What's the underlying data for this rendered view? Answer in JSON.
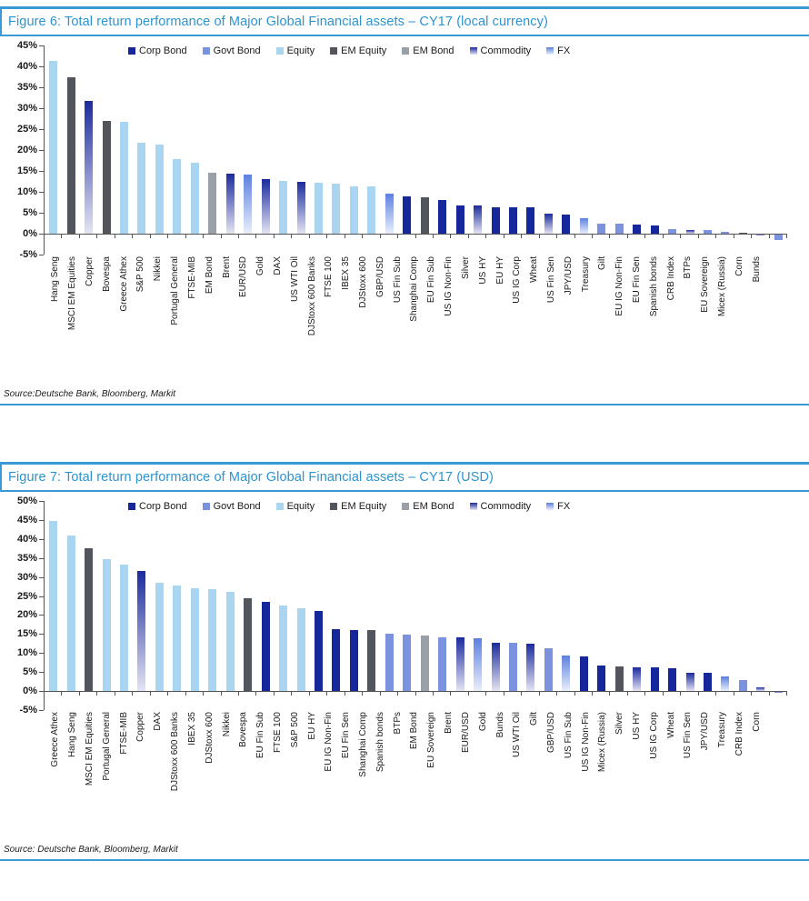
{
  "colors": {
    "accent_rule": "#3a9ad6",
    "title_blue": "#2b94d2",
    "axis": "#555555",
    "corp_bond": "#16279c",
    "govt_bond": "#7b93df",
    "equity": "#a9d5f1",
    "em_equity": "#53555d",
    "em_bond": "#9aa0a8",
    "commodity_top": "#1b2b9e",
    "commodity_bottom": "#e4e4f3",
    "fx_top": "#5b80e0",
    "fx_bottom": "#e9effb"
  },
  "legend_items": [
    {
      "label": "Corp Bond",
      "key": "corp_bond"
    },
    {
      "label": "Govt Bond",
      "key": "govt_bond"
    },
    {
      "label": "Equity",
      "key": "equity"
    },
    {
      "label": "EM Equity",
      "key": "em_equity"
    },
    {
      "label": "EM Bond",
      "key": "em_bond"
    },
    {
      "label": "Commodity",
      "key": "commodity"
    },
    {
      "label": "FX",
      "key": "fx"
    }
  ],
  "chart_data": [
    {
      "type": "bar",
      "title": "Figure 6: Total return performance of Major Global Financial assets – CY17 (local currency)",
      "source": "Source:Deutsche Bank, Bloomberg, Markit",
      "ylabel": "",
      "xlabel": "",
      "ylim": [
        -5,
        45
      ],
      "ytick_step": 5,
      "ytick_suffix": "%",
      "grid": false,
      "legend_position": "top",
      "categories": [
        "Hang Seng",
        "MSCI EM Equities",
        "Copper",
        "Bovespa",
        "Greece Athex",
        "S&P 500",
        "Nikkei",
        "Portugal General",
        "FTSE-MIB",
        "EM Bond",
        "Brent",
        "EUR/USD",
        "Gold",
        "DAX",
        "US WTI Oil",
        "DJStoxx 600 Banks",
        "FTSE 100",
        "IBEX 35",
        "DJStoxx 600",
        "GBP/USD",
        "US Fin Sub",
        "Shanghai Comp",
        "EU Fin Sub",
        "US IG Non-Fin",
        "Silver",
        "US HY",
        "EU HY",
        "US IG Corp",
        "Wheat",
        "US Fin Sen",
        "JPY/USD",
        "Treasury",
        "Gilt",
        "EU IG Non-Fin",
        "EU Fin Sen",
        "Spanish bonds",
        "CRB Index",
        "BTPs",
        "EU Sovereign",
        "Micex (Russia)",
        "Corn",
        "Bunds"
      ],
      "asset_class": [
        "equity",
        "em_equity",
        "commodity",
        "em_equity",
        "equity",
        "equity",
        "equity",
        "equity",
        "equity",
        "em_bond",
        "commodity",
        "fx",
        "commodity",
        "equity",
        "commodity",
        "equity",
        "equity",
        "equity",
        "equity",
        "fx",
        "corp_bond",
        "em_equity",
        "corp_bond",
        "corp_bond",
        "commodity",
        "corp_bond",
        "corp_bond",
        "corp_bond",
        "commodity",
        "corp_bond",
        "fx",
        "govt_bond",
        "govt_bond",
        "corp_bond",
        "corp_bond",
        "govt_bond",
        "commodity",
        "govt_bond",
        "govt_bond",
        "em_equity",
        "commodity",
        "govt_bond"
      ],
      "values": [
        41.3,
        37.5,
        31.7,
        26.9,
        26.7,
        21.8,
        21.2,
        17.8,
        16.9,
        14.5,
        14.3,
        14.1,
        13.1,
        12.7,
        12.5,
        12.1,
        11.9,
        11.3,
        11.2,
        9.5,
        9.0,
        8.8,
        8.0,
        6.7,
        6.7,
        6.4,
        6.3,
        6.2,
        4.8,
        4.6,
        3.8,
        2.5,
        2.3,
        2.2,
        1.9,
        1.0,
        0.9,
        0.9,
        0.5,
        0.2,
        -0.2,
        -1.2
      ]
    },
    {
      "type": "bar",
      "title": "Figure 7: Total return performance of Major Global Financial assets – CY17 (USD)",
      "source": "Source: Deutsche Bank, Bloomberg, Markit",
      "ylabel": "",
      "xlabel": "",
      "ylim": [
        -5,
        50
      ],
      "ytick_step": 5,
      "ytick_suffix": "%",
      "grid": false,
      "legend_position": "top",
      "categories": [
        "Greece Athex",
        "Hang Seng",
        "MSCI EM Equities",
        "Portugal General",
        "FTSE-MIB",
        "Copper",
        "DAX",
        "DJStoxx 600 Banks",
        "IBEX 35",
        "DJStoxx 600",
        "Nikkei",
        "Bovespa",
        "EU Fin Sub",
        "FTSE 100",
        "S&P 500",
        "EU HY",
        "EU IG Non-Fin",
        "EU Fin Sen",
        "Shanghai Comp",
        "Spanish bonds",
        "BTPs",
        "EM Bond",
        "EU Sovereign",
        "Brent",
        "EUR/USD",
        "Gold",
        "Bunds",
        "US WTI Oil",
        "Gilt",
        "GBP/USD",
        "US Fin Sub",
        "US IG Non-Fin",
        "Micex (Russia)",
        "Silver",
        "US HY",
        "US IG Corp",
        "Wheat",
        "US Fin Sen",
        "JPY/USD",
        "Treasury",
        "CRB Index",
        "Corn"
      ],
      "asset_class": [
        "equity",
        "equity",
        "em_equity",
        "equity",
        "equity",
        "commodity",
        "equity",
        "equity",
        "equity",
        "equity",
        "equity",
        "em_equity",
        "corp_bond",
        "equity",
        "equity",
        "corp_bond",
        "corp_bond",
        "corp_bond",
        "em_equity",
        "govt_bond",
        "govt_bond",
        "em_bond",
        "govt_bond",
        "commodity",
        "fx",
        "commodity",
        "govt_bond",
        "commodity",
        "govt_bond",
        "fx",
        "corp_bond",
        "corp_bond",
        "em_equity",
        "commodity",
        "corp_bond",
        "corp_bond",
        "commodity",
        "corp_bond",
        "fx",
        "govt_bond",
        "commodity",
        "commodity"
      ],
      "values": [
        44.7,
        41.0,
        37.5,
        34.6,
        33.2,
        31.7,
        28.4,
        27.8,
        27.0,
        26.9,
        26.0,
        24.5,
        23.4,
        22.6,
        21.8,
        21.1,
        16.2,
        16.1,
        16.0,
        15.2,
        14.9,
        14.6,
        14.2,
        14.1,
        14.0,
        12.8,
        12.6,
        12.5,
        11.2,
        9.4,
        9.0,
        6.7,
        6.4,
        6.3,
        6.2,
        6.1,
        4.8,
        4.7,
        3.9,
        2.8,
        1.0,
        -0.1
      ]
    }
  ]
}
